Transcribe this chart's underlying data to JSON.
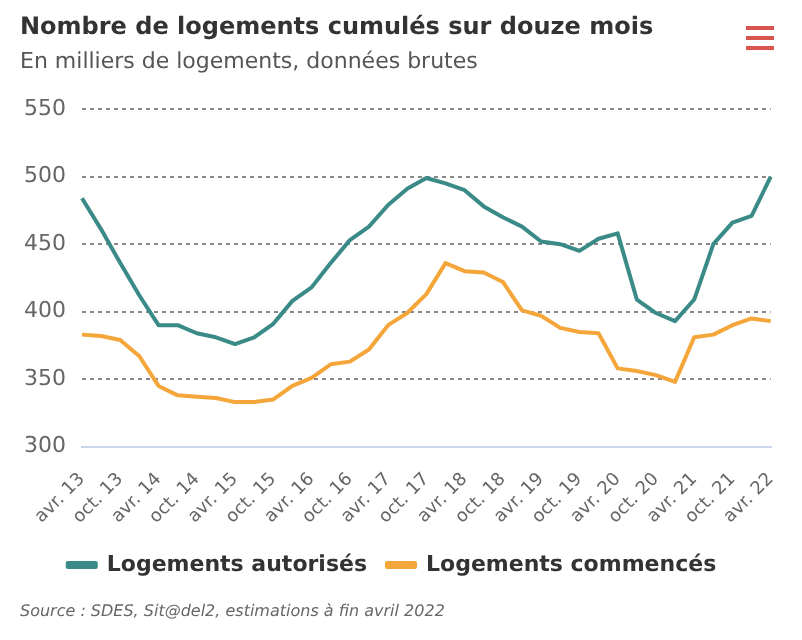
{
  "chart_data": {
    "type": "line",
    "title": "Nombre de logements cumulés sur douze mois",
    "subtitle": "En milliers de logements, données brutes",
    "categories": [
      "avr. 13",
      null,
      "oct. 13",
      null,
      "avr. 14",
      null,
      "oct. 14",
      null,
      "avr. 15",
      null,
      "oct. 15",
      null,
      "avr. 16",
      null,
      "oct. 16",
      null,
      "avr. 17",
      null,
      "oct. 17",
      null,
      "avr. 18",
      null,
      "oct. 18",
      null,
      "avr. 19",
      null,
      "oct. 19",
      null,
      "avr. 20",
      null,
      "oct. 20",
      null,
      "avr. 21",
      null,
      "oct. 21",
      null,
      "avr. 22"
    ],
    "series": [
      {
        "name": "Logements autorisés",
        "color": "#3a8a87",
        "values": [
          484,
          461,
          436,
          412,
          390,
          390,
          384,
          381,
          376,
          381,
          391,
          408,
          418,
          436,
          453,
          463,
          479,
          491,
          499,
          495,
          490,
          478,
          470,
          463,
          452,
          450,
          445,
          454,
          458,
          409,
          399,
          393,
          409,
          450,
          466,
          471,
          500
        ]
      },
      {
        "name": "Logements commencés",
        "color": "#f5a63a",
        "values": [
          383,
          382,
          379,
          367,
          345,
          338,
          337,
          336,
          333,
          333,
          335,
          345,
          351,
          361,
          363,
          372,
          390,
          399,
          413,
          436,
          430,
          429,
          422,
          401,
          397,
          388,
          385,
          384,
          358,
          356,
          353,
          348,
          381,
          383,
          390,
          395,
          393
        ]
      }
    ],
    "ylim": [
      300,
      550
    ],
    "yticks": [
      300,
      350,
      400,
      450,
      500,
      550
    ],
    "grid": "y",
    "legend": "bottom",
    "marker": "none",
    "line_style": "solid",
    "annotations": [
      "Source : SDES, Sit@del2, estimations à fin avril 2022"
    ]
  }
}
